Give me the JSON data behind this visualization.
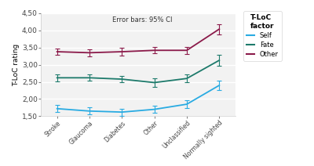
{
  "categories": [
    "Stroke",
    "Glaucoma",
    "Diabetes",
    "Other",
    "Unclassified",
    "Normally sighted"
  ],
  "self": [
    1.72,
    1.65,
    1.62,
    1.7,
    1.85,
    2.4
  ],
  "fate": [
    2.62,
    2.62,
    2.58,
    2.48,
    2.6,
    3.13
  ],
  "other": [
    3.38,
    3.35,
    3.38,
    3.42,
    3.42,
    4.04
  ],
  "self_err": [
    0.1,
    0.1,
    0.1,
    0.1,
    0.12,
    0.13
  ],
  "fate_err": [
    0.1,
    0.09,
    0.1,
    0.13,
    0.12,
    0.16
  ],
  "other_err": [
    0.1,
    0.1,
    0.12,
    0.09,
    0.1,
    0.15
  ],
  "self_color": "#29ABE2",
  "fate_color": "#1D7A6B",
  "other_color": "#8B1A4A",
  "ylabel": "T-LoC rating",
  "ylim": [
    1.5,
    4.5
  ],
  "yticks": [
    1.5,
    2.0,
    2.5,
    3.0,
    3.5,
    4.0,
    4.5
  ],
  "ytick_labels": [
    "1,50",
    "2,00",
    "2,50",
    "3,00",
    "3,50",
    "4,00",
    "4,50"
  ],
  "legend_title": "T-LoC\nfactor",
  "annotation": "Error bars: 95% CI",
  "bg_color": "#ffffff",
  "plot_bg": "#f0f0f0"
}
